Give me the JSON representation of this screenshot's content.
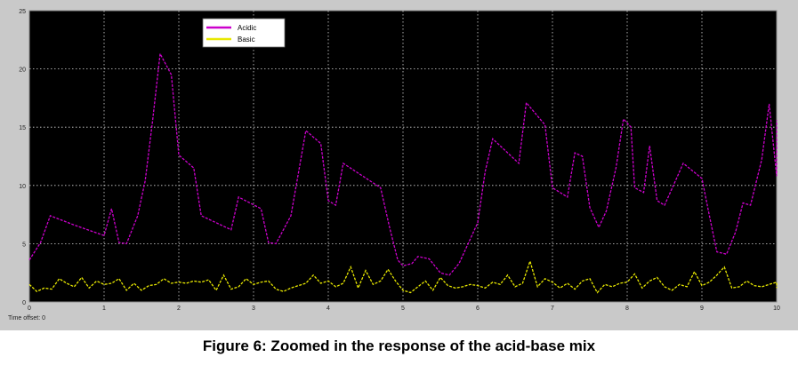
{
  "caption": "Figure 6: Zoomed in the response of the acid-base mix",
  "time_offset": {
    "label": "Time offset:",
    "value": "0"
  },
  "chart_data": {
    "type": "line",
    "xlim": [
      0,
      10
    ],
    "ylim": [
      0,
      25
    ],
    "x_ticks": [
      "0",
      "1",
      "2",
      "3",
      "4",
      "5",
      "6",
      "7",
      "8",
      "9",
      "10"
    ],
    "y_ticks": [
      "0",
      "5",
      "10",
      "15",
      "20",
      "25"
    ],
    "grid": true,
    "legend_position": "top-left",
    "background": "#000000",
    "series": [
      {
        "name": "Acidic",
        "color": "#cc00cc",
        "points": [
          [
            0.0,
            3.6
          ],
          [
            0.15,
            5.1
          ],
          [
            0.28,
            7.4
          ],
          [
            0.6,
            6.6
          ],
          [
            1.0,
            5.7
          ],
          [
            1.1,
            8.0
          ],
          [
            1.2,
            5.1
          ],
          [
            1.3,
            5.0
          ],
          [
            1.45,
            7.4
          ],
          [
            1.55,
            10.4
          ],
          [
            1.65,
            15.6
          ],
          [
            1.75,
            21.3
          ],
          [
            1.9,
            19.5
          ],
          [
            2.0,
            12.6
          ],
          [
            2.2,
            11.5
          ],
          [
            2.3,
            7.4
          ],
          [
            2.7,
            6.2
          ],
          [
            2.8,
            9.0
          ],
          [
            3.1,
            8.0
          ],
          [
            3.2,
            5.1
          ],
          [
            3.3,
            5.0
          ],
          [
            3.5,
            7.4
          ],
          [
            3.7,
            14.7
          ],
          [
            3.9,
            13.6
          ],
          [
            4.0,
            8.7
          ],
          [
            4.1,
            8.3
          ],
          [
            4.2,
            11.9
          ],
          [
            4.7,
            9.8
          ],
          [
            4.82,
            6.4
          ],
          [
            4.93,
            3.6
          ],
          [
            5.0,
            3.1
          ],
          [
            5.12,
            3.3
          ],
          [
            5.2,
            3.9
          ],
          [
            5.35,
            3.7
          ],
          [
            5.5,
            2.5
          ],
          [
            5.62,
            2.3
          ],
          [
            5.75,
            3.3
          ],
          [
            6.0,
            6.8
          ],
          [
            6.1,
            11.2
          ],
          [
            6.2,
            14.0
          ],
          [
            6.55,
            11.9
          ],
          [
            6.65,
            17.1
          ],
          [
            6.9,
            15.2
          ],
          [
            7.0,
            9.8
          ],
          [
            7.2,
            9.0
          ],
          [
            7.3,
            12.8
          ],
          [
            7.4,
            12.5
          ],
          [
            7.5,
            8.1
          ],
          [
            7.62,
            6.4
          ],
          [
            7.72,
            7.8
          ],
          [
            7.85,
            11.5
          ],
          [
            7.95,
            15.7
          ],
          [
            8.05,
            15.0
          ],
          [
            8.1,
            9.8
          ],
          [
            8.22,
            9.4
          ],
          [
            8.3,
            13.4
          ],
          [
            8.4,
            8.7
          ],
          [
            8.5,
            8.3
          ],
          [
            8.75,
            11.9
          ],
          [
            9.0,
            10.6
          ],
          [
            9.1,
            7.4
          ],
          [
            9.2,
            4.3
          ],
          [
            9.33,
            4.1
          ],
          [
            9.45,
            6.0
          ],
          [
            9.55,
            8.5
          ],
          [
            9.65,
            8.3
          ],
          [
            9.8,
            12.2
          ],
          [
            9.9,
            17.0
          ],
          [
            10.0,
            10.8
          ],
          [
            10.1,
            15.6
          ]
        ]
      },
      {
        "name": "Basic",
        "color": "#e8e800",
        "points": [
          [
            0.0,
            1.5
          ],
          [
            0.1,
            0.9
          ],
          [
            0.2,
            1.2
          ],
          [
            0.3,
            1.1
          ],
          [
            0.4,
            2.0
          ],
          [
            0.5,
            1.6
          ],
          [
            0.6,
            1.3
          ],
          [
            0.7,
            2.1
          ],
          [
            0.8,
            1.2
          ],
          [
            0.9,
            1.8
          ],
          [
            1.0,
            1.5
          ],
          [
            1.1,
            1.6
          ],
          [
            1.2,
            2.0
          ],
          [
            1.3,
            1.0
          ],
          [
            1.4,
            1.6
          ],
          [
            1.5,
            1.0
          ],
          [
            1.6,
            1.4
          ],
          [
            1.7,
            1.5
          ],
          [
            1.8,
            2.0
          ],
          [
            1.9,
            1.6
          ],
          [
            2.0,
            1.7
          ],
          [
            2.1,
            1.6
          ],
          [
            2.2,
            1.8
          ],
          [
            2.3,
            1.7
          ],
          [
            2.4,
            1.9
          ],
          [
            2.5,
            1.0
          ],
          [
            2.6,
            2.3
          ],
          [
            2.7,
            1.1
          ],
          [
            2.8,
            1.3
          ],
          [
            2.9,
            2.0
          ],
          [
            3.0,
            1.5
          ],
          [
            3.1,
            1.7
          ],
          [
            3.2,
            1.8
          ],
          [
            3.3,
            1.1
          ],
          [
            3.4,
            0.9
          ],
          [
            3.5,
            1.2
          ],
          [
            3.6,
            1.4
          ],
          [
            3.7,
            1.6
          ],
          [
            3.8,
            2.3
          ],
          [
            3.9,
            1.6
          ],
          [
            4.0,
            1.8
          ],
          [
            4.1,
            1.3
          ],
          [
            4.2,
            1.6
          ],
          [
            4.3,
            3.0
          ],
          [
            4.4,
            1.2
          ],
          [
            4.5,
            2.7
          ],
          [
            4.6,
            1.5
          ],
          [
            4.7,
            1.8
          ],
          [
            4.8,
            2.8
          ],
          [
            4.9,
            1.8
          ],
          [
            5.0,
            1.0
          ],
          [
            5.1,
            0.8
          ],
          [
            5.2,
            1.3
          ],
          [
            5.3,
            1.8
          ],
          [
            5.4,
            1.0
          ],
          [
            5.5,
            2.1
          ],
          [
            5.6,
            1.4
          ],
          [
            5.7,
            1.2
          ],
          [
            5.8,
            1.3
          ],
          [
            5.9,
            1.5
          ],
          [
            6.0,
            1.4
          ],
          [
            6.1,
            1.2
          ],
          [
            6.2,
            1.7
          ],
          [
            6.3,
            1.5
          ],
          [
            6.4,
            2.3
          ],
          [
            6.5,
            1.3
          ],
          [
            6.6,
            1.6
          ],
          [
            6.7,
            3.5
          ],
          [
            6.8,
            1.3
          ],
          [
            6.9,
            2.0
          ],
          [
            7.0,
            1.7
          ],
          [
            7.1,
            1.2
          ],
          [
            7.2,
            1.6
          ],
          [
            7.3,
            1.1
          ],
          [
            7.4,
            1.8
          ],
          [
            7.5,
            2.0
          ],
          [
            7.6,
            0.8
          ],
          [
            7.7,
            1.5
          ],
          [
            7.8,
            1.3
          ],
          [
            7.9,
            1.6
          ],
          [
            8.0,
            1.7
          ],
          [
            8.1,
            2.4
          ],
          [
            8.2,
            1.2
          ],
          [
            8.3,
            1.8
          ],
          [
            8.4,
            2.1
          ],
          [
            8.5,
            1.3
          ],
          [
            8.6,
            1.0
          ],
          [
            8.7,
            1.5
          ],
          [
            8.8,
            1.3
          ],
          [
            8.9,
            2.6
          ],
          [
            9.0,
            1.4
          ],
          [
            9.1,
            1.7
          ],
          [
            9.2,
            2.3
          ],
          [
            9.3,
            3.0
          ],
          [
            9.4,
            1.2
          ],
          [
            9.5,
            1.3
          ],
          [
            9.6,
            1.8
          ],
          [
            9.7,
            1.4
          ],
          [
            9.8,
            1.3
          ],
          [
            9.9,
            1.5
          ],
          [
            10.0,
            1.7
          ],
          [
            10.1,
            1.2
          ]
        ]
      }
    ]
  }
}
